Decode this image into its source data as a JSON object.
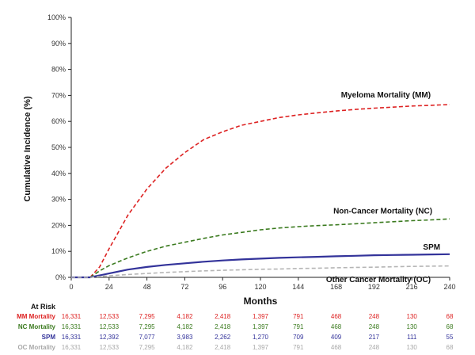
{
  "chart_data": {
    "type": "line",
    "ylabel": "Cumulative Incidence (%)",
    "xlabel": "Months",
    "ylim": [
      0,
      100
    ],
    "xlim": [
      0,
      240
    ],
    "x_ticks": [
      "0",
      "24",
      "48",
      "72",
      "96",
      "120",
      "144",
      "168",
      "192",
      "216",
      "240"
    ],
    "y_ticks": [
      "0%",
      "10%",
      "20%",
      "30%",
      "40%",
      "50%",
      "60%",
      "70%",
      "80%",
      "90%",
      "100%"
    ],
    "grid": false,
    "series": [
      {
        "name": "Myeloma Mortality (MM)",
        "color": "#dd2222",
        "style": "dashed",
        "x": [
          0,
          12,
          18,
          24,
          36,
          48,
          60,
          72,
          84,
          96,
          108,
          120,
          132,
          144,
          156,
          168,
          180,
          192,
          204,
          216,
          228,
          240
        ],
        "y": [
          0,
          0,
          4,
          11,
          24,
          34,
          42,
          48,
          53,
          56,
          58.5,
          60,
          61.5,
          62.5,
          63.3,
          64,
          64.6,
          65.1,
          65.5,
          65.9,
          66.2,
          66.5
        ]
      },
      {
        "name": "Non-Cancer Mortality (NC)",
        "color": "#3a7a1e",
        "style": "dashed",
        "x": [
          0,
          12,
          18,
          24,
          36,
          48,
          60,
          72,
          84,
          96,
          108,
          120,
          132,
          144,
          156,
          168,
          180,
          192,
          204,
          216,
          228,
          240
        ],
        "y": [
          0,
          0,
          2.5,
          4.5,
          7.5,
          10,
          12,
          13.5,
          15,
          16.3,
          17.3,
          18.3,
          19,
          19.5,
          19.9,
          20.2,
          20.6,
          21,
          21.4,
          21.8,
          22.1,
          22.5
        ]
      },
      {
        "name": "SPM",
        "color": "#33339a",
        "style": "solid",
        "x": [
          0,
          12,
          24,
          36,
          48,
          60,
          72,
          84,
          96,
          108,
          120,
          132,
          144,
          156,
          168,
          180,
          192,
          204,
          216,
          228,
          240
        ],
        "y": [
          0,
          0,
          1.5,
          3,
          4,
          4.8,
          5.4,
          6,
          6.5,
          6.9,
          7.2,
          7.5,
          7.7,
          7.9,
          8.1,
          8.3,
          8.5,
          8.6,
          8.7,
          8.8,
          8.9
        ]
      },
      {
        "name": "Other Cancer Mortality (OC)",
        "color": "#b5b5b5",
        "style": "dashed",
        "x": [
          0,
          12,
          24,
          36,
          48,
          60,
          72,
          84,
          96,
          108,
          120,
          132,
          144,
          156,
          168,
          180,
          192,
          204,
          216,
          228,
          240
        ],
        "y": [
          0,
          0,
          0.6,
          1.1,
          1.5,
          1.9,
          2.2,
          2.5,
          2.7,
          2.9,
          3.1,
          3.2,
          3.4,
          3.5,
          3.7,
          3.8,
          3.9,
          4.1,
          4.2,
          4.3,
          4.4
        ]
      }
    ],
    "annotations": [
      {
        "text": "Myeloma Mortality (MM)",
        "series": 0,
        "anchor_x": 228
      },
      {
        "text": "Non-Cancer Mortality (NC)",
        "series": 1,
        "anchor_x": 228
      },
      {
        "text": "SPM",
        "series": 2,
        "anchor_x": 228
      },
      {
        "text": "Other Cancer Mortality (OC)",
        "series": 3,
        "anchor_x": 228
      }
    ],
    "at_risk": {
      "header": "At Risk",
      "rows": [
        {
          "label": "MM Mortality",
          "color": "#dd2222",
          "values": [
            "16,331",
            "12,533",
            "7,295",
            "4,182",
            "2,418",
            "1,397",
            "791",
            "468",
            "248",
            "130",
            "68"
          ]
        },
        {
          "label": "NC Mortality",
          "color": "#3a7a1e",
          "values": [
            "16,331",
            "12,533",
            "7,295",
            "4,182",
            "2,418",
            "1,397",
            "791",
            "468",
            "248",
            "130",
            "68"
          ]
        },
        {
          "label": "SPM",
          "color": "#33339a",
          "values": [
            "16,331",
            "12,392",
            "7,077",
            "3,983",
            "2,262",
            "1,270",
            "709",
            "409",
            "217",
            "111",
            "55"
          ]
        },
        {
          "label": "OC Mortality",
          "color": "#a8a8a8",
          "values": [
            "16,331",
            "12,533",
            "7,295",
            "4,182",
            "2,418",
            "1,397",
            "791",
            "468",
            "248",
            "130",
            "68"
          ]
        }
      ]
    }
  }
}
